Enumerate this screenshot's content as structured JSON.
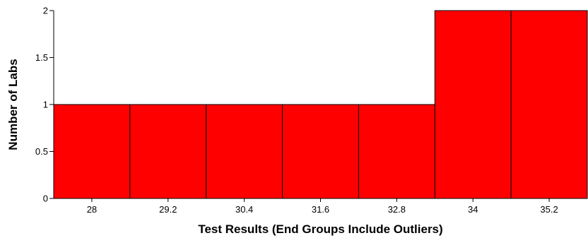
{
  "chart_data": {
    "type": "bar",
    "categories": [
      "28",
      "29.2",
      "30.4",
      "31.6",
      "32.8",
      "34",
      "35.2"
    ],
    "values": [
      1,
      1,
      1,
      1,
      1,
      2,
      2
    ],
    "title": "",
    "xlabel": "Test Results (End Groups Include Outliers)",
    "ylabel": "Number of Labs",
    "ylim": [
      0,
      2
    ],
    "yticks": [
      "0",
      "0.5",
      "1",
      "1.5",
      "2"
    ],
    "bar_color": "#ff0000",
    "bar_edge_color": "#000000",
    "grid": false,
    "legend": "none"
  }
}
